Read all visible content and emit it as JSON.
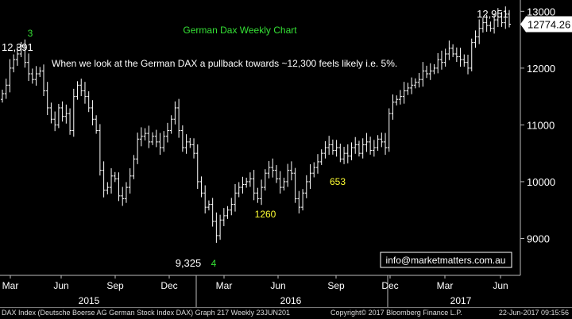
{
  "chart_data": {
    "type": "ohlc",
    "title": "German Dax Weekly Chart",
    "ylim": [
      8350,
      13200
    ],
    "yticks": [
      9000,
      10000,
      11000,
      12000,
      13000
    ],
    "grid": false,
    "last_price": "12774.26",
    "x_month_labels": [
      "Mar",
      "Jun",
      "Sep",
      "Dec",
      "Mar",
      "Jun",
      "Sep",
      "Dec",
      "Mar",
      "Jun"
    ],
    "x_year_labels": [
      "2015",
      "2016",
      "2017"
    ],
    "annotations": [
      {
        "text": "3",
        "color": "#35e035"
      },
      {
        "text": "12,391",
        "color": "#ffffff"
      },
      {
        "text": "When we look at the German DAX a pullback towards ~12,300 feels likely i.e. 5%.",
        "color": "#ffffff"
      },
      {
        "text": "1260",
        "color": "#ffff33"
      },
      {
        "text": "653",
        "color": "#ffff33"
      },
      {
        "text": "9,325",
        "color": "#ffffff"
      },
      {
        "text": "4",
        "color": "#35e035"
      },
      {
        "text": "12,951",
        "color": "#ffffff"
      }
    ],
    "watermark": "info@marketmatters.com.au",
    "weekly_close": [
      11550,
      11700,
      12000,
      12150,
      12250,
      12391,
      12100,
      11900,
      11800,
      11900,
      11950,
      11600,
      11300,
      11100,
      11000,
      11300,
      11150,
      11200,
      10900,
      11500,
      11700,
      11600,
      11500,
      11300,
      11100,
      10900,
      10200,
      9850,
      9900,
      10100,
      10050,
      9750,
      9700,
      9900,
      10100,
      10400,
      10750,
      10800,
      10850,
      10700,
      10800,
      10700,
      10600,
      10800,
      10900,
      11100,
      11300,
      10900,
      10600,
      10700,
      10650,
      10500,
      10000,
      9800,
      9550,
      9600,
      9300,
      9050,
      9325,
      9400,
      9500,
      9600,
      9800,
      9900,
      9950,
      10000,
      10050,
      9800,
      9700,
      9900,
      10150,
      10250,
      10200,
      10050,
      9900,
      10000,
      10200,
      10150,
      9700,
      9550,
      9800,
      10000,
      10150,
      10250,
      10350,
      10500,
      10600,
      10650,
      10550,
      10600,
      10400,
      10500,
      10450,
      10600,
      10650,
      10500,
      10650,
      10700,
      10550,
      10600,
      10750,
      10700,
      10600,
      11200,
      11400,
      11450,
      11500,
      11600,
      11650,
      11700,
      11750,
      11800,
      11950,
      11900,
      11950,
      12000,
      12150,
      12100,
      12250,
      12350,
      12250,
      12200,
      12150,
      12100,
      12000,
      12450,
      12550,
      12700,
      12800,
      12750,
      12700,
      12850,
      12900,
      12800,
      12951,
      12774
    ]
  },
  "footer": {
    "left": "DAX Index (Deutsche Boerse AG German Stock Index DAX) Graph 217  Weekly 23JUN201",
    "mid": "Copyright© 2017 Bloomberg Finance L.P.",
    "right": "22-Jun-2017 09:15:56"
  }
}
